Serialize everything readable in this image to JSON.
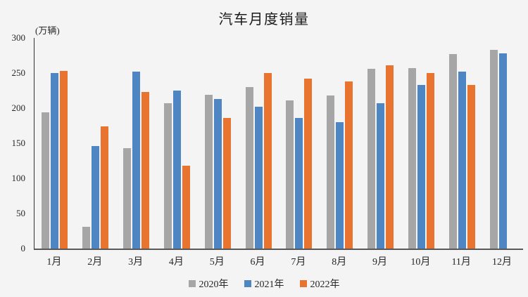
{
  "chart_data": {
    "type": "bar",
    "title": "汽车月度销量",
    "unit_label": "(万辆)",
    "categories": [
      "1月",
      "2月",
      "3月",
      "4月",
      "5月",
      "6月",
      "7月",
      "8月",
      "9月",
      "10月",
      "11月",
      "12月"
    ],
    "series": [
      {
        "name": "2020年",
        "color": "#a6a6a6",
        "values": [
          194,
          31,
          143,
          207,
          219,
          230,
          211,
          218,
          256,
          257,
          277,
          283
        ]
      },
      {
        "name": "2021年",
        "color": "#4d86c3",
        "values": [
          250,
          146,
          252,
          225,
          213,
          202,
          186,
          180,
          207,
          233,
          252,
          278
        ]
      },
      {
        "name": "2022年",
        "color": "#e8742f",
        "values": [
          253,
          174,
          223,
          118,
          186,
          250,
          242,
          238,
          261,
          250,
          233,
          null
        ]
      }
    ],
    "ylim": [
      0,
      300
    ],
    "yticks": [
      0,
      50,
      100,
      150,
      200,
      250,
      300
    ],
    "grid": false,
    "legend_position": "bottom"
  },
  "colors": {
    "background": "#f4f4f4",
    "y_axis_line": "#333333",
    "x_axis_line": "#595959",
    "text": "#262626"
  }
}
